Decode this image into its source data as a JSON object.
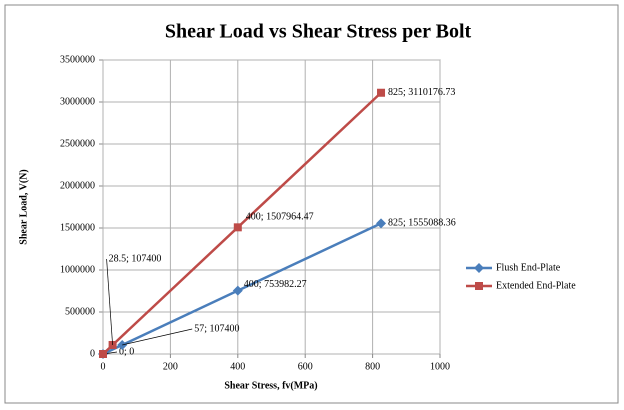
{
  "chart_data": {
    "type": "scatter_line",
    "title": "Shear Load vs Shear Stress per Bolt",
    "x_label": "Shear Stress, fv(MPa)",
    "y_label": "Shear Load, V(N)",
    "xlim": [
      0,
      1000
    ],
    "xticks": [
      0,
      200,
      400,
      600,
      800,
      1000
    ],
    "ylim": [
      0,
      3500000
    ],
    "yticks": [
      0,
      500000,
      1000000,
      1500000,
      2000000,
      2500000,
      3000000,
      3500000
    ],
    "grid": true,
    "legend": "right",
    "series": [
      {
        "name": "Flush End-Plate",
        "color": "#4a7ebb",
        "marker": "diamond",
        "x": [
          0,
          57,
          400,
          825
        ],
        "values": [
          0,
          107400,
          753982.27,
          1555088.36
        ],
        "value_labels": [
          "0; 0",
          "57; 107400",
          "400; 753982.27",
          "825; 1555088.36"
        ]
      },
      {
        "name": "Extended End-Plate",
        "color": "#be4b48",
        "marker": "square",
        "x": [
          0,
          28.5,
          400,
          825
        ],
        "values": [
          0,
          107400,
          1507964.47,
          3110176.73
        ],
        "value_labels": [
          null,
          "28.5; 107400",
          "400; 1507964.47",
          "825; 3110176.73"
        ]
      }
    ]
  }
}
